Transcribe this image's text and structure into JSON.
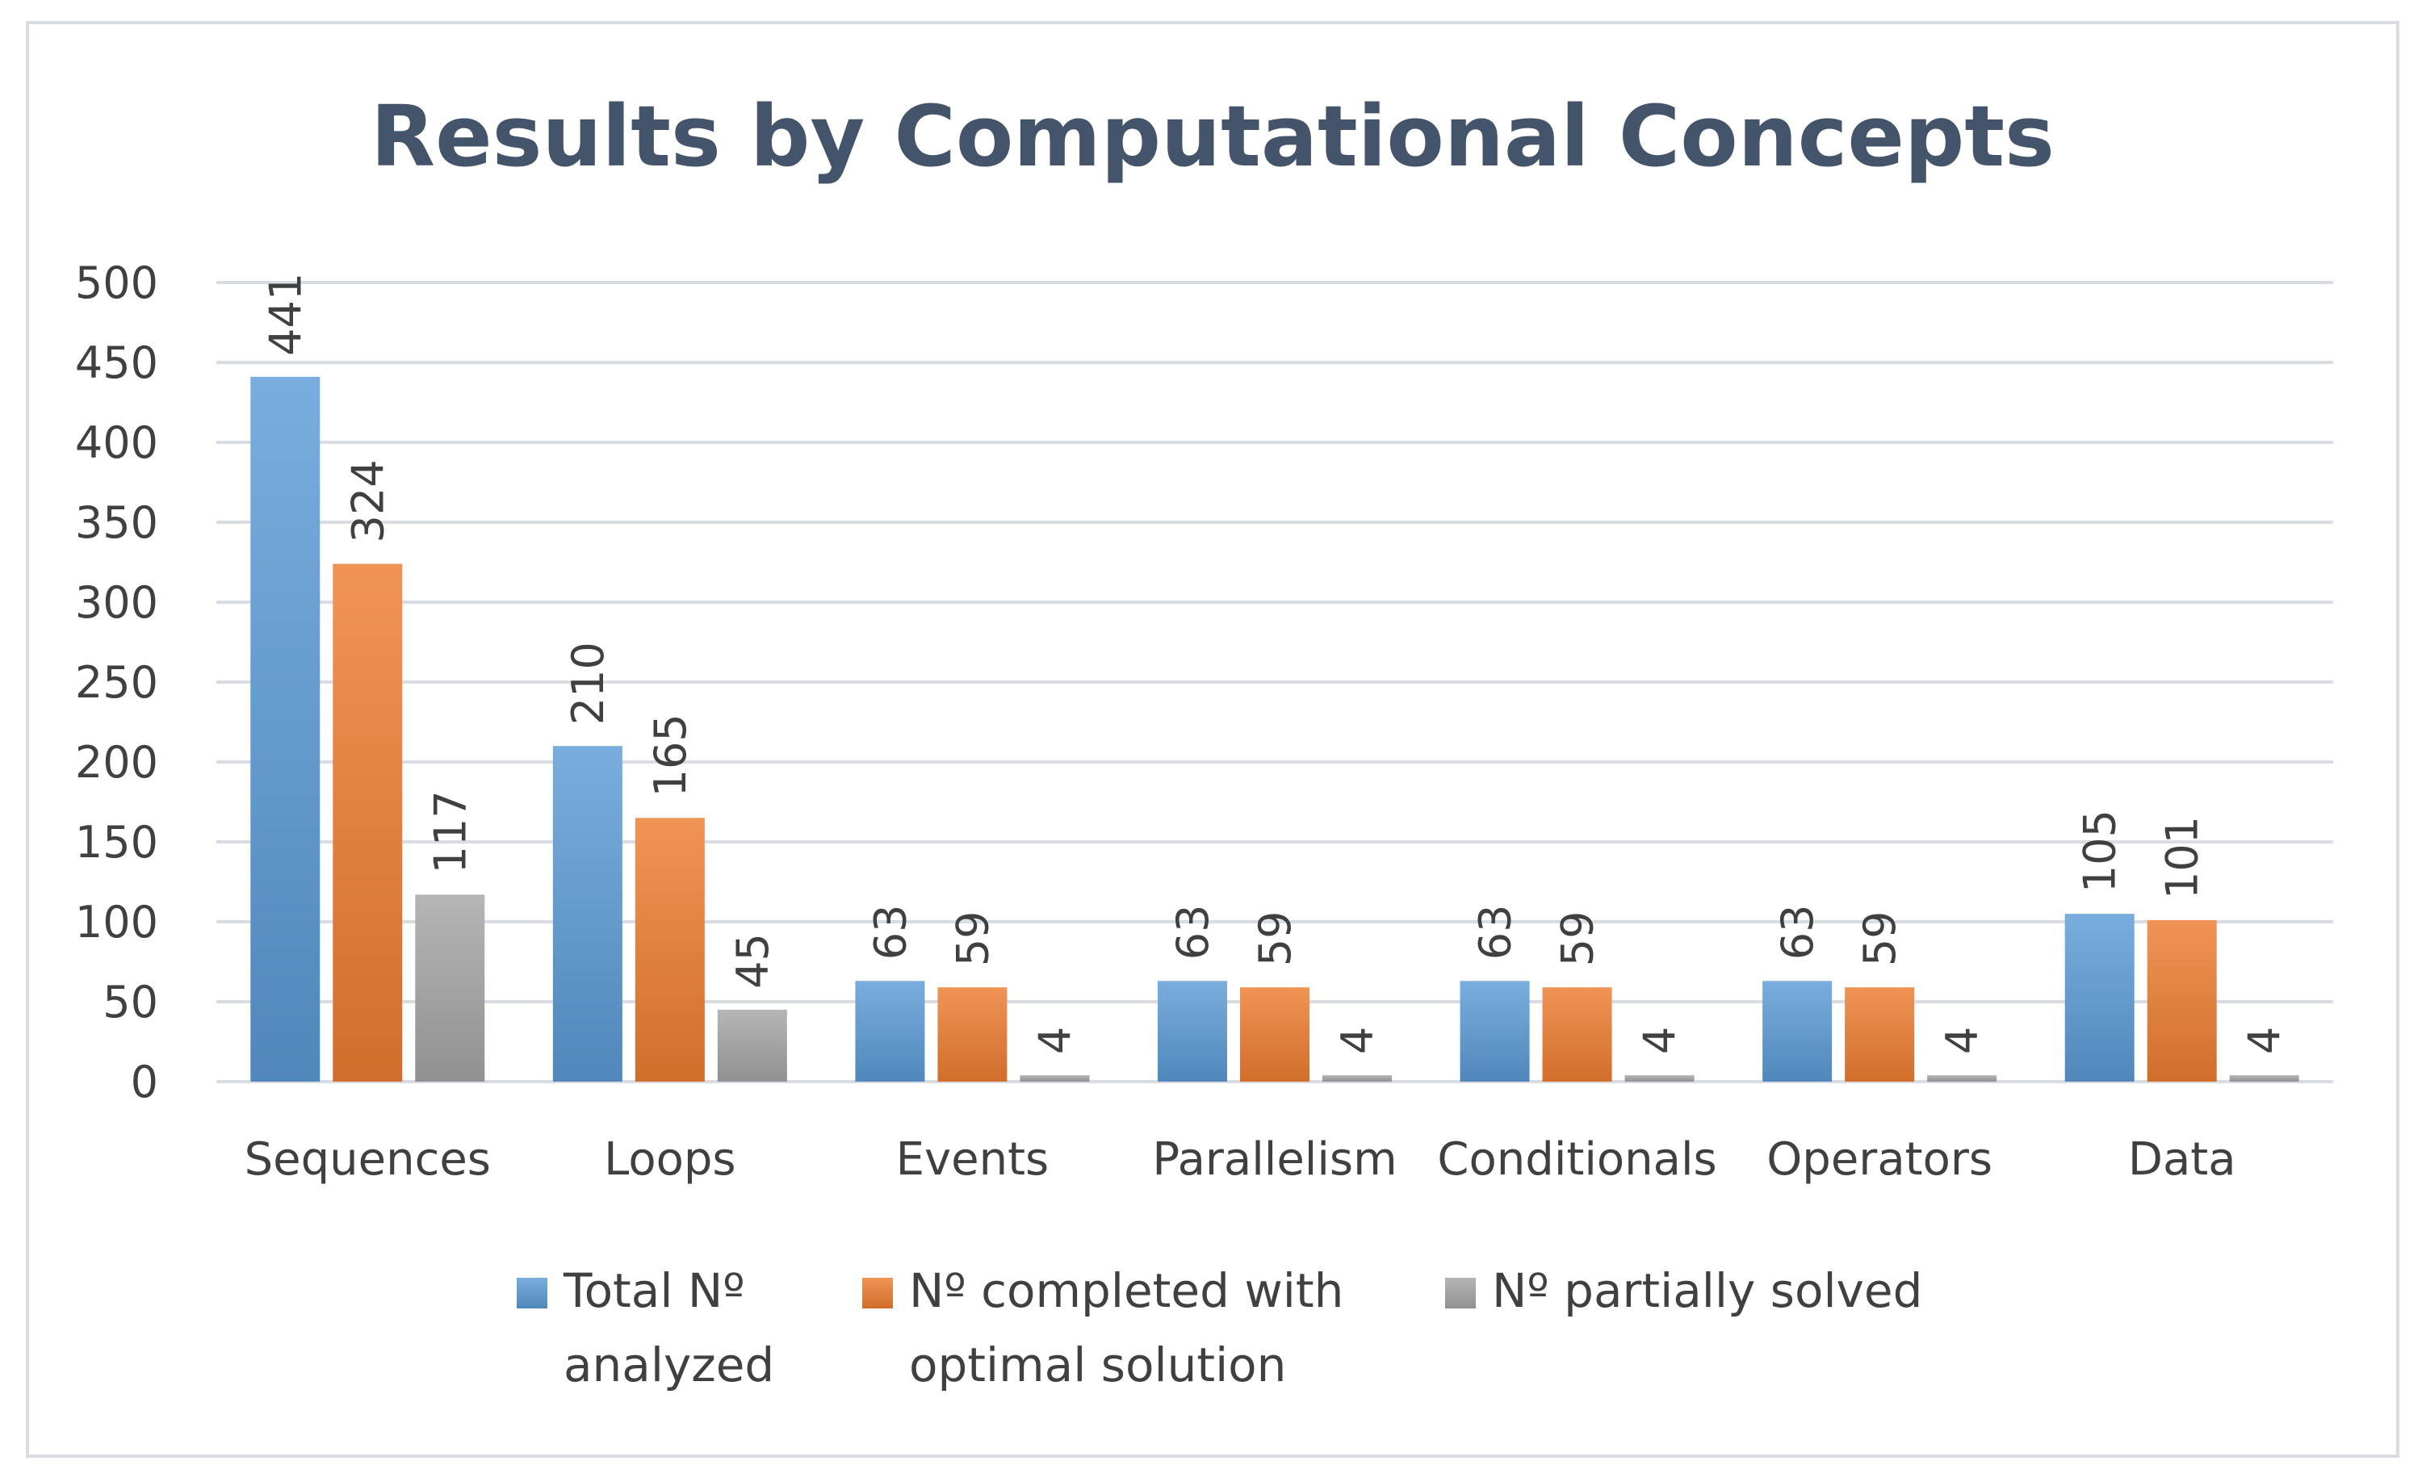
{
  "chart_data": {
    "type": "bar",
    "title": "Results by Computational Concepts",
    "xlabel": "",
    "ylabel": "",
    "ylim": [
      0,
      500
    ],
    "yticks": [
      0,
      50,
      100,
      150,
      200,
      250,
      300,
      350,
      400,
      450,
      500
    ],
    "grid": true,
    "legend_position": "bottom",
    "categories": [
      "Sequences",
      "Loops",
      "Events",
      "Parallelism",
      "Conditionals",
      "Operators",
      "Data"
    ],
    "series": [
      {
        "name": "Total Nº analyzed",
        "legend_lines": [
          "Total Nº",
          "analyzed"
        ],
        "color": "#5b9bd5",
        "values": [
          441,
          210,
          63,
          63,
          63,
          63,
          105
        ]
      },
      {
        "name": "Nº completed with optimal solution",
        "legend_lines": [
          "Nº completed with",
          "optimal solution"
        ],
        "color": "#ed7d31",
        "values": [
          324,
          165,
          59,
          59,
          59,
          59,
          101
        ]
      },
      {
        "name": "Nº partially solved",
        "legend_lines": [
          "Nº partially solved"
        ],
        "color": "#a5a5a5",
        "values": [
          117,
          45,
          4,
          4,
          4,
          4,
          4
        ]
      }
    ]
  },
  "colors": {
    "title": "#44546a",
    "text": "#404040",
    "grid": "#d9dde3",
    "frame": "#d9dde3"
  }
}
